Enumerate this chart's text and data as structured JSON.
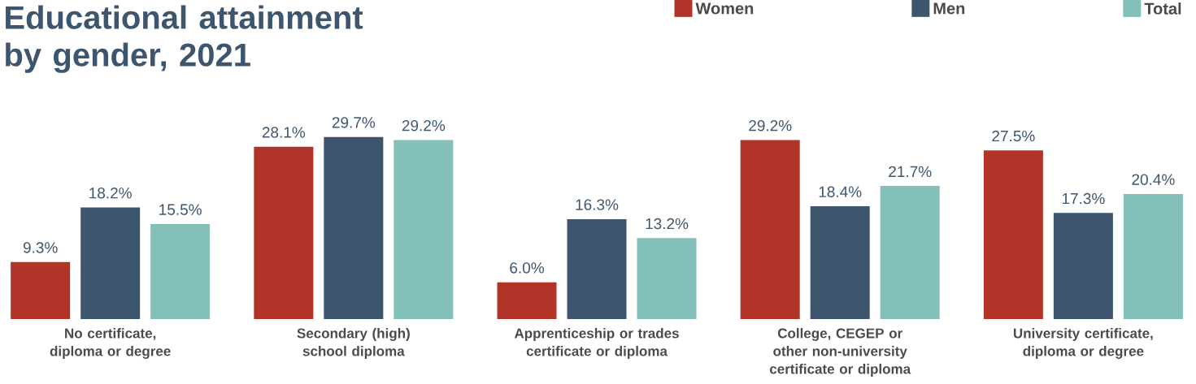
{
  "chart_data": {
    "type": "bar",
    "title": "Educational attainment by gender, 2021",
    "categories": [
      "No certificate, diploma or degree",
      "Secondary (high) school diploma",
      "Apprenticeship or trades certificate or diploma",
      "College, CEGEP or other non-university certificate or diploma",
      "University certificate, diploma or degree"
    ],
    "series": [
      {
        "name": "Women",
        "color": "#b03427",
        "values": [
          9.3,
          28.1,
          6.0,
          29.2,
          27.5
        ],
        "value_labels": [
          "9.3%",
          "28.1%",
          "6.0%",
          "29.2%",
          "27.5%"
        ]
      },
      {
        "name": "Men",
        "color": "#3d566e",
        "values": [
          18.2,
          29.7,
          16.3,
          18.4,
          17.3
        ],
        "value_labels": [
          "18.2%",
          "29.7%",
          "16.3%",
          "18.4%",
          "17.3%"
        ]
      },
      {
        "name": "Total",
        "color": "#83c0ba",
        "values": [
          15.5,
          29.2,
          13.2,
          21.7,
          20.4
        ],
        "value_labels": [
          "15.5%",
          "29.2%",
          "13.2%",
          "21.7%",
          "20.4%"
        ]
      }
    ],
    "legend": "top right"
  }
}
